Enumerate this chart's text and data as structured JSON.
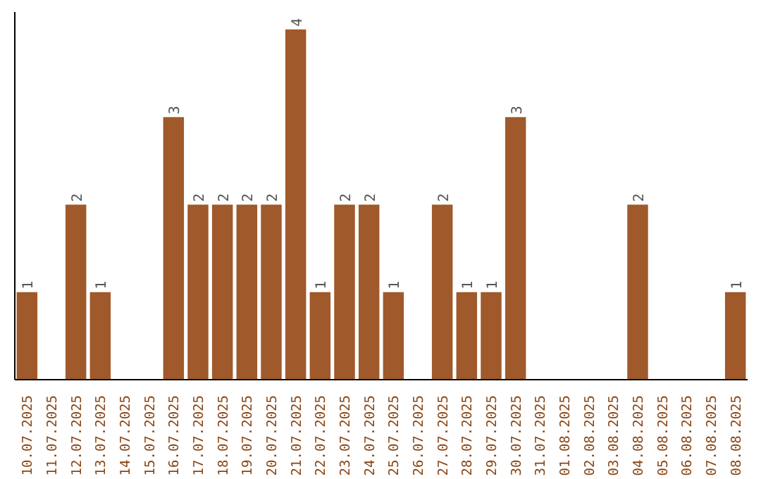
{
  "chart_data": {
    "type": "bar",
    "categories": [
      "10.07.2025",
      "11.07.2025",
      "12.07.2025",
      "13.07.2025",
      "14.07.2025",
      "15.07.2025",
      "16.07.2025",
      "17.07.2025",
      "18.07.2025",
      "19.07.2025",
      "20.07.2025",
      "21.07.2025",
      "22.07.2025",
      "23.07.2025",
      "24.07.2025",
      "25.07.2025",
      "26.07.2025",
      "27.07.2025",
      "28.07.2025",
      "29.07.2025",
      "30.07.2025",
      "31.07.2025",
      "01.08.2025",
      "02.08.2025",
      "03.08.2025",
      "04.08.2025",
      "05.08.2025",
      "06.08.2025",
      "07.08.2025",
      "08.08.2025"
    ],
    "values": [
      1,
      0,
      2,
      1,
      0,
      0,
      3,
      2,
      2,
      2,
      2,
      4,
      1,
      2,
      2,
      1,
      0,
      2,
      1,
      1,
      3,
      0,
      0,
      0,
      0,
      2,
      0,
      0,
      0,
      1
    ],
    "value_labels": [
      "1",
      null,
      "2",
      "1",
      null,
      null,
      "3",
      "2",
      "2",
      "2",
      "2",
      "4",
      "1",
      "2",
      "2",
      "1",
      null,
      "2",
      "1",
      "1",
      "3",
      null,
      null,
      null,
      null,
      "2",
      null,
      null,
      null,
      "1"
    ],
    "color": "#a0592b",
    "ylim": [
      0,
      4.2
    ]
  }
}
